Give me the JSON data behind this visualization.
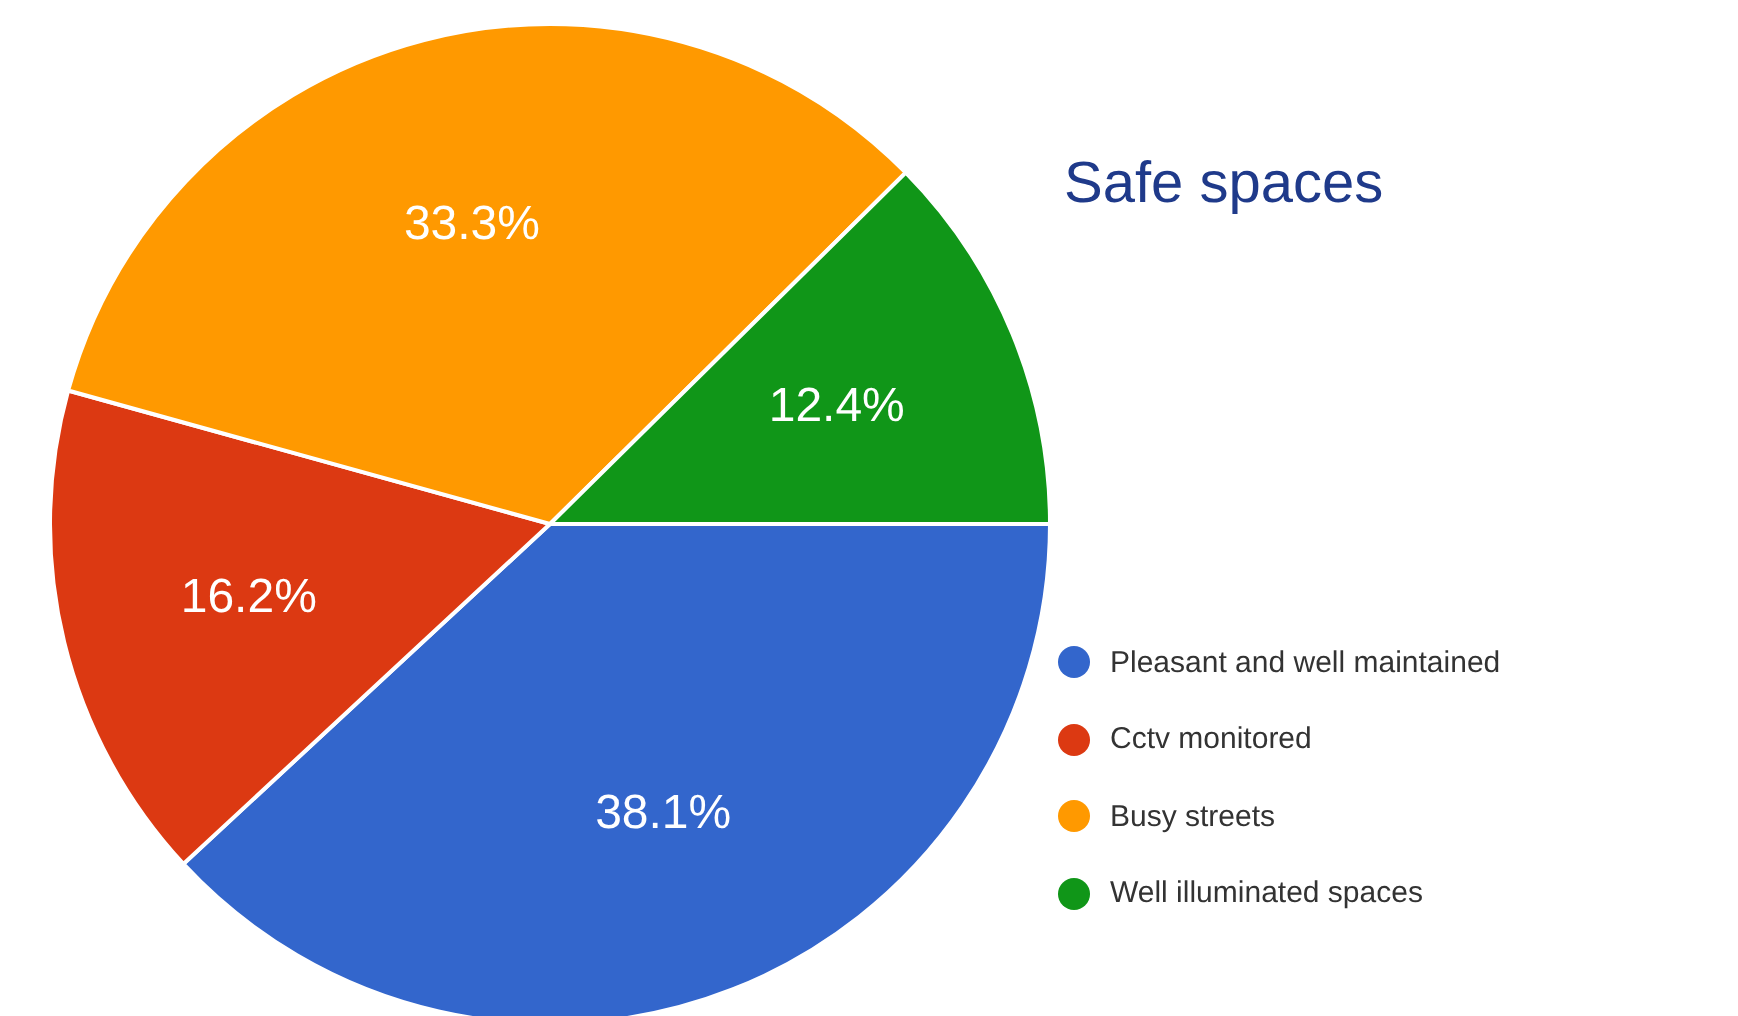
{
  "chart_data": {
    "type": "pie",
    "title": "Safe spaces",
    "categories": [
      "Pleasant and well maintained",
      "Cctv monitored",
      "Busy streets",
      "Well illuminated spaces"
    ],
    "values": [
      38.1,
      16.2,
      33.3,
      12.4
    ],
    "colors": [
      "#3366cc",
      "#dc3912",
      "#ff9900",
      "#109618"
    ],
    "value_labels": [
      "38.1%",
      "16.2%",
      "33.3%",
      "12.4%"
    ],
    "legend": "right"
  }
}
